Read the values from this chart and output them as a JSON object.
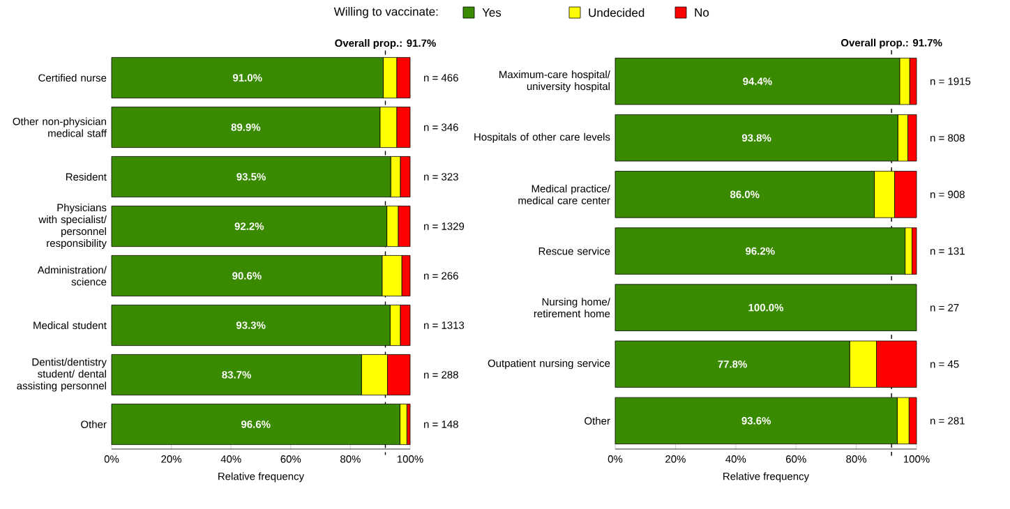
{
  "chart_data": [
    {
      "type": "bar",
      "orientation": "horizontal",
      "stacked": true,
      "legend": "top",
      "legend_title": "Willing to vaccinate:",
      "xlabel": "Relative frequency",
      "categories": [
        "Certified nurse",
        "Other non-physician medical staff",
        "Resident",
        "Physicians with specialist/ personnel responsibility",
        "Administration/ science",
        "Medical student",
        "Dentist/dentistry student/ dental assisting personnel",
        "Other"
      ],
      "series": [
        {
          "name": "Yes",
          "color": "#3a8a00",
          "values": [
            91.0,
            89.9,
            93.5,
            92.2,
            90.6,
            93.3,
            83.7,
            96.6
          ],
          "value_labels": [
            "91.0%",
            "89.9%",
            "93.5%",
            "92.2%",
            "90.6%",
            "93.3%",
            "83.7%",
            "96.6%"
          ]
        },
        {
          "name": "Undecided",
          "color": "#ffff00",
          "values": [
            4.5,
            5.6,
            3.2,
            3.8,
            6.6,
            3.4,
            8.7,
            2.3
          ]
        },
        {
          "name": "No",
          "color": "#ff0000",
          "values": [
            4.5,
            4.5,
            3.3,
            4.0,
            2.8,
            3.3,
            7.6,
            1.1
          ]
        }
      ],
      "xlim": [
        0,
        100
      ],
      "xticks": [
        {
          "value": 0,
          "label": "0%"
        },
        {
          "value": 20,
          "label": "20%"
        },
        {
          "value": 40,
          "label": "40%"
        },
        {
          "value": 60,
          "label": "60%"
        },
        {
          "value": 80,
          "label": "80%"
        },
        {
          "value": 100,
          "label": "100%"
        }
      ],
      "ref_lines": [
        {
          "axis": "x",
          "value": 91.7,
          "label": "Overall prop.: 91.7%",
          "line_style": "dashed"
        }
      ],
      "annotations": [
        "n = 466",
        "n = 346",
        "n = 323",
        "n = 1329",
        "n = 266",
        "n = 1313",
        "n = 288",
        "n = 148"
      ]
    },
    {
      "type": "bar",
      "orientation": "horizontal",
      "stacked": true,
      "xlabel": "Relative frequency",
      "categories": [
        "Maximum-care hospital/ university hospital",
        "Hospitals of other care levels",
        "Medical practice/ medical care center",
        "Rescue service",
        "Nursing home/ retirement home",
        "Outpatient nursing service",
        "Other"
      ],
      "series": [
        {
          "color": "#3a8a00",
          "values": [
            94.4,
            93.8,
            86.0,
            96.2,
            100.0,
            77.8,
            93.6
          ],
          "value_labels": [
            "94.4%",
            "93.8%",
            "86.0%",
            "96.2%",
            "100.0%",
            "77.8%",
            "93.6%"
          ]
        },
        {
          "color": "#ffff00",
          "values": [
            3.3,
            3.3,
            6.7,
            2.3,
            0,
            8.9,
            3.9
          ]
        },
        {
          "color": "#ff0000",
          "values": [
            2.3,
            2.9,
            7.3,
            1.5,
            0,
            13.3,
            2.5
          ]
        }
      ],
      "xlim": [
        0,
        100
      ],
      "xticks": [
        {
          "value": 0,
          "label": "0%"
        },
        {
          "value": 20,
          "label": "20%"
        },
        {
          "value": 40,
          "label": "40%"
        },
        {
          "value": 60,
          "label": "60%"
        },
        {
          "value": 80,
          "label": "80%"
        },
        {
          "value": 100,
          "label": "100%"
        }
      ],
      "ref_lines": [
        {
          "axis": "x",
          "value": 91.7,
          "label": "Overall prop.: 91.7%",
          "line_style": "dashed"
        }
      ],
      "annotations": [
        "n = 1915",
        "n = 808",
        "n = 908",
        "n = 131",
        "n = 27",
        "n = 45",
        "n = 281"
      ]
    }
  ]
}
